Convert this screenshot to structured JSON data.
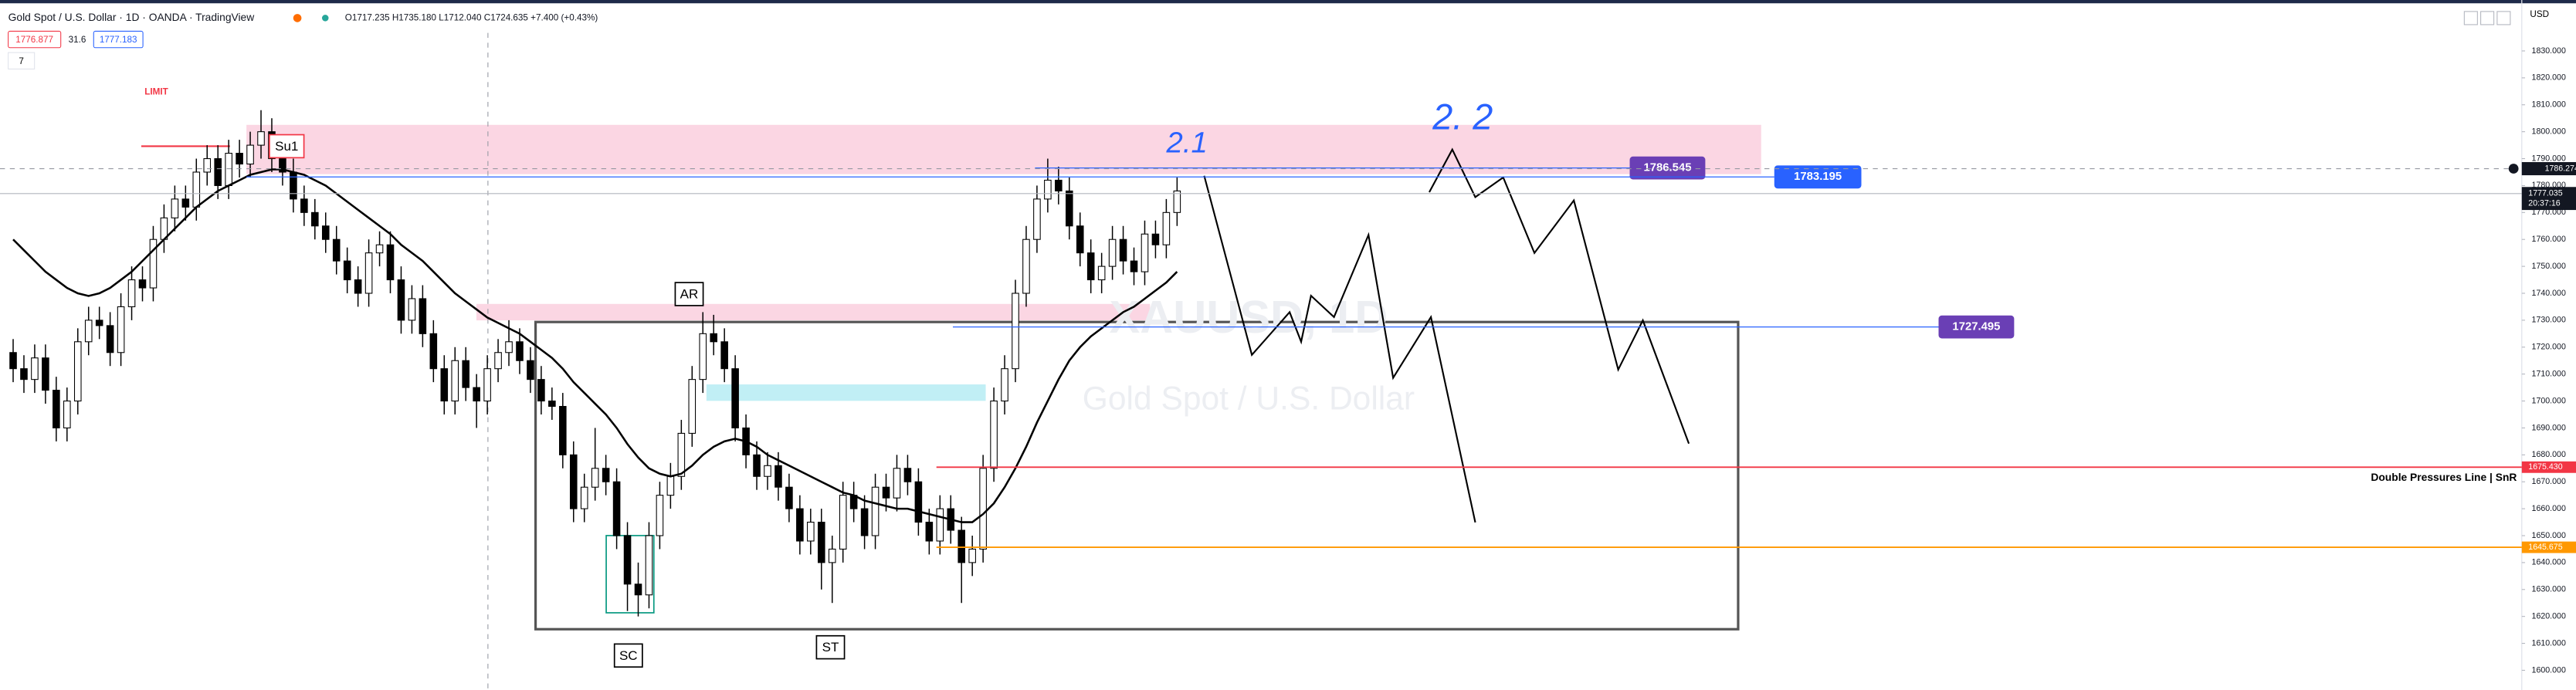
{
  "header": {
    "symbol": "Gold Spot / U.S. Dollar · 1D · OANDA · TradingView",
    "ohlc": "O1717.235 H1735.180 L1712.040 C1724.635 +7.400 (+0.43%)",
    "sell": "1776.877",
    "spread": "31.6",
    "buy": "1777.183",
    "indicator_count": "7",
    "currency": "USD"
  },
  "watermark": {
    "symbol": "XAUUSD, 1D",
    "name": "Gold Spot / U.S. Dollar"
  },
  "annotations": {
    "limit": "LIMIT",
    "su1": "Su1",
    "ar": "AR",
    "sc": "SC",
    "st": "ST",
    "wave1": "2.1",
    "wave2": "2. 2",
    "double_line": "Double Pressures Line | SnR"
  },
  "chart_data": {
    "type": "candlestick",
    "up_color": "#ffffff",
    "down_color": "#000000",
    "ma_color": "#000000",
    "open": [
      1718,
      1712,
      1708,
      1716,
      1704,
      1690,
      1700,
      1722,
      1730,
      1728,
      1718,
      1735,
      1745,
      1742,
      1760,
      1768,
      1775,
      1772,
      1785,
      1790,
      1780,
      1792,
      1788,
      1795,
      1800,
      1790,
      1785,
      1775,
      1770,
      1765,
      1760,
      1752,
      1745,
      1740,
      1755,
      1758,
      1745,
      1730,
      1738,
      1725,
      1712,
      1700,
      1715,
      1705,
      1700,
      1712,
      1718,
      1722,
      1715,
      1708,
      1700,
      1698,
      1680,
      1660,
      1668,
      1675,
      1670,
      1650,
      1632,
      1628,
      1650,
      1665,
      1672,
      1688,
      1708,
      1725,
      1722,
      1712,
      1690,
      1680,
      1672,
      1676,
      1668,
      1660,
      1648,
      1655,
      1640,
      1645,
      1665,
      1660,
      1650,
      1668,
      1664,
      1675,
      1670,
      1655,
      1648,
      1660,
      1652,
      1640,
      1645,
      1675,
      1700,
      1712,
      1740,
      1760,
      1775,
      1782,
      1778,
      1765,
      1755,
      1745,
      1750,
      1760,
      1752,
      1748,
      1762,
      1758,
      1770
    ],
    "high": [
      1723,
      1717,
      1721,
      1721,
      1709,
      1705,
      1727,
      1735,
      1735,
      1733,
      1740,
      1750,
      1750,
      1765,
      1773,
      1780,
      1780,
      1790,
      1795,
      1795,
      1797,
      1797,
      1800,
      1808,
      1805,
      1795,
      1790,
      1780,
      1775,
      1770,
      1765,
      1757,
      1750,
      1760,
      1763,
      1763,
      1750,
      1743,
      1743,
      1730,
      1717,
      1720,
      1720,
      1710,
      1717,
      1723,
      1730,
      1727,
      1720,
      1713,
      1705,
      1703,
      1685,
      1673,
      1690,
      1680,
      1675,
      1655,
      1640,
      1655,
      1670,
      1677,
      1693,
      1713,
      1733,
      1732,
      1727,
      1717,
      1695,
      1685,
      1681,
      1681,
      1673,
      1665,
      1660,
      1660,
      1650,
      1670,
      1670,
      1665,
      1673,
      1673,
      1680,
      1680,
      1675,
      1660,
      1665,
      1665,
      1657,
      1650,
      1680,
      1705,
      1717,
      1745,
      1765,
      1780,
      1790,
      1787,
      1783,
      1770,
      1760,
      1755,
      1765,
      1765,
      1757,
      1767,
      1767,
      1775,
      1783
    ],
    "low": [
      1707,
      1703,
      1703,
      1699,
      1685,
      1685,
      1695,
      1717,
      1723,
      1713,
      1713,
      1730,
      1737,
      1737,
      1755,
      1763,
      1767,
      1767,
      1780,
      1775,
      1775,
      1783,
      1783,
      1790,
      1785,
      1780,
      1770,
      1765,
      1760,
      1755,
      1747,
      1740,
      1735,
      1735,
      1750,
      1740,
      1725,
      1725,
      1720,
      1707,
      1695,
      1695,
      1700,
      1690,
      1695,
      1707,
      1713,
      1710,
      1703,
      1695,
      1693,
      1675,
      1655,
      1655,
      1663,
      1665,
      1645,
      1622,
      1620,
      1623,
      1645,
      1660,
      1667,
      1683,
      1703,
      1717,
      1707,
      1685,
      1675,
      1667,
      1667,
      1663,
      1655,
      1643,
      1643,
      1630,
      1625,
      1640,
      1655,
      1645,
      1645,
      1659,
      1659,
      1665,
      1650,
      1643,
      1643,
      1647,
      1625,
      1635,
      1640,
      1670,
      1695,
      1707,
      1735,
      1755,
      1770,
      1773,
      1760,
      1750,
      1740,
      1740,
      1745,
      1747,
      1743,
      1743,
      1753,
      1753,
      1765
    ],
    "close": [
      1712,
      1708,
      1716,
      1704,
      1690,
      1700,
      1722,
      1730,
      1728,
      1718,
      1735,
      1745,
      1742,
      1760,
      1768,
      1775,
      1772,
      1785,
      1790,
      1780,
      1792,
      1788,
      1795,
      1800,
      1790,
      1785,
      1775,
      1770,
      1765,
      1760,
      1752,
      1745,
      1740,
      1755,
      1758,
      1745,
      1730,
      1738,
      1725,
      1712,
      1700,
      1715,
      1705,
      1700,
      1712,
      1718,
      1722,
      1715,
      1708,
      1700,
      1698,
      1680,
      1660,
      1668,
      1675,
      1670,
      1650,
      1632,
      1628,
      1650,
      1665,
      1672,
      1688,
      1708,
      1725,
      1722,
      1712,
      1690,
      1680,
      1672,
      1676,
      1668,
      1660,
      1648,
      1655,
      1640,
      1645,
      1665,
      1660,
      1650,
      1668,
      1664,
      1675,
      1670,
      1655,
      1648,
      1660,
      1652,
      1640,
      1645,
      1675,
      1700,
      1712,
      1740,
      1760,
      1775,
      1782,
      1778,
      1765,
      1755,
      1745,
      1750,
      1760,
      1752,
      1748,
      1762,
      1758,
      1770,
      1778
    ],
    "ma": [
      1760,
      1756,
      1752,
      1748,
      1745,
      1742,
      1740,
      1739,
      1740,
      1742,
      1745,
      1748,
      1752,
      1756,
      1760,
      1764,
      1768,
      1772,
      1775,
      1778,
      1780,
      1782,
      1784,
      1785,
      1786,
      1786,
      1785,
      1784,
      1782,
      1780,
      1777,
      1774,
      1771,
      1768,
      1765,
      1762,
      1758,
      1755,
      1752,
      1748,
      1744,
      1740,
      1737,
      1734,
      1731,
      1729,
      1727,
      1725,
      1722,
      1719,
      1716,
      1712,
      1707,
      1703,
      1699,
      1695,
      1690,
      1684,
      1679,
      1675,
      1673,
      1672,
      1673,
      1676,
      1680,
      1683,
      1685,
      1686,
      1685,
      1683,
      1680,
      1678,
      1676,
      1674,
      1672,
      1670,
      1668,
      1666,
      1665,
      1663,
      1662,
      1661,
      1660,
      1660,
      1659,
      1658,
      1657,
      1656,
      1655,
      1655,
      1658,
      1662,
      1668,
      1675,
      1683,
      1692,
      1700,
      1708,
      1715,
      1720,
      1724,
      1727,
      1730,
      1733,
      1735,
      1738,
      1741,
      1744,
      1748
    ],
    "ylim": [
      1600,
      1830
    ],
    "yticks": [
      {
        "value": 1600,
        "label": "1600.000"
      },
      {
        "value": 1610,
        "label": "1610.000"
      },
      {
        "value": 1620,
        "label": "1620.000"
      },
      {
        "value": 1630,
        "label": "1630.000"
      },
      {
        "value": 1640,
        "label": "1640.000"
      },
      {
        "value": 1650,
        "label": "1650.000"
      },
      {
        "value": 1660,
        "label": "1660.000"
      },
      {
        "value": 1670,
        "label": "1670.000"
      },
      {
        "value": 1680,
        "label": "1680.000"
      },
      {
        "value": 1690,
        "label": "1690.000"
      },
      {
        "value": 1700,
        "label": "1700.000"
      },
      {
        "value": 1710,
        "label": "1710.000"
      },
      {
        "value": 1720,
        "label": "1720.000"
      },
      {
        "value": 1730,
        "label": "1730.000"
      },
      {
        "value": 1740,
        "label": "1740.000"
      },
      {
        "value": 1750,
        "label": "1750.000"
      },
      {
        "value": 1760,
        "label": "1760.000"
      },
      {
        "value": 1770,
        "label": "1770.000"
      },
      {
        "value": 1780,
        "label": "1780.000"
      },
      {
        "value": 1790,
        "label": "1790.000"
      },
      {
        "value": 1800,
        "label": "1800.000"
      },
      {
        "value": 1810,
        "label": "1810.000"
      },
      {
        "value": 1820,
        "label": "1820.000"
      },
      {
        "value": 1830,
        "label": "1830.000"
      }
    ],
    "price_lines": [
      {
        "value": 1675.43,
        "label": "1675.430",
        "color": "#f23645"
      },
      {
        "value": 1645.675,
        "label": "1645.675",
        "color": "#ff9800"
      }
    ],
    "callouts": [
      {
        "value": 1786.545,
        "color": "#6a3fb5"
      },
      {
        "value": 1783.195,
        "color": "#2962ff"
      },
      {
        "value": 1727.495,
        "color": "#6a3fb5"
      }
    ],
    "crosshair_price": 1786.274,
    "last_price": {
      "value": 1777.035,
      "countdown": "20:37:16"
    }
  }
}
